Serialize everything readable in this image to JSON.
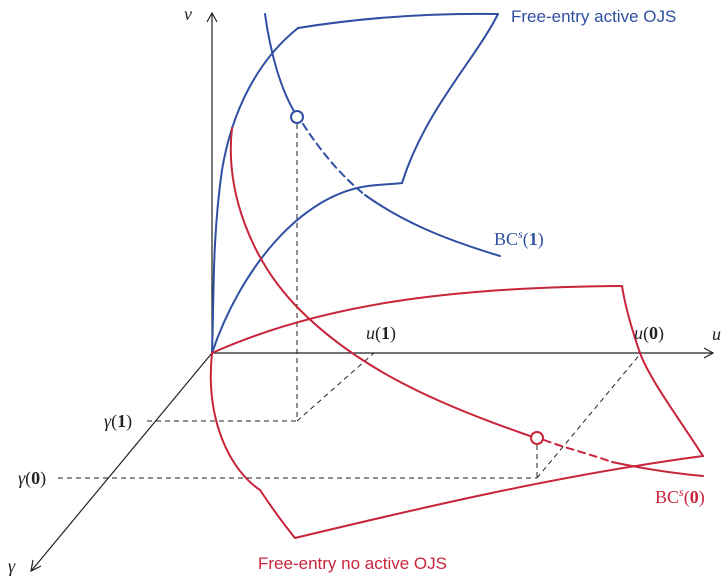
{
  "axes": {
    "v_label": "v",
    "u_label": "u",
    "gamma_label": "γ"
  },
  "ticks": {
    "u1": {
      "fn": "u",
      "arg": "1"
    },
    "u0": {
      "fn": "u",
      "arg": "0"
    },
    "g1": {
      "fn": "γ",
      "arg": "1"
    },
    "g0": {
      "fn": "γ",
      "arg": "0"
    }
  },
  "curves": {
    "blue_surface_label": "Free-entry active OJS",
    "red_surface_label": "Free-entry no active OJS",
    "bc1": {
      "base": "BC",
      "sup": "s",
      "arg": "1"
    },
    "bc0": {
      "base": "BC",
      "sup": "s",
      "arg": "0"
    }
  },
  "colors": {
    "blue": "#2f4fa2",
    "red": "#c8243a",
    "axis": "#222222",
    "guide": "#222222"
  }
}
